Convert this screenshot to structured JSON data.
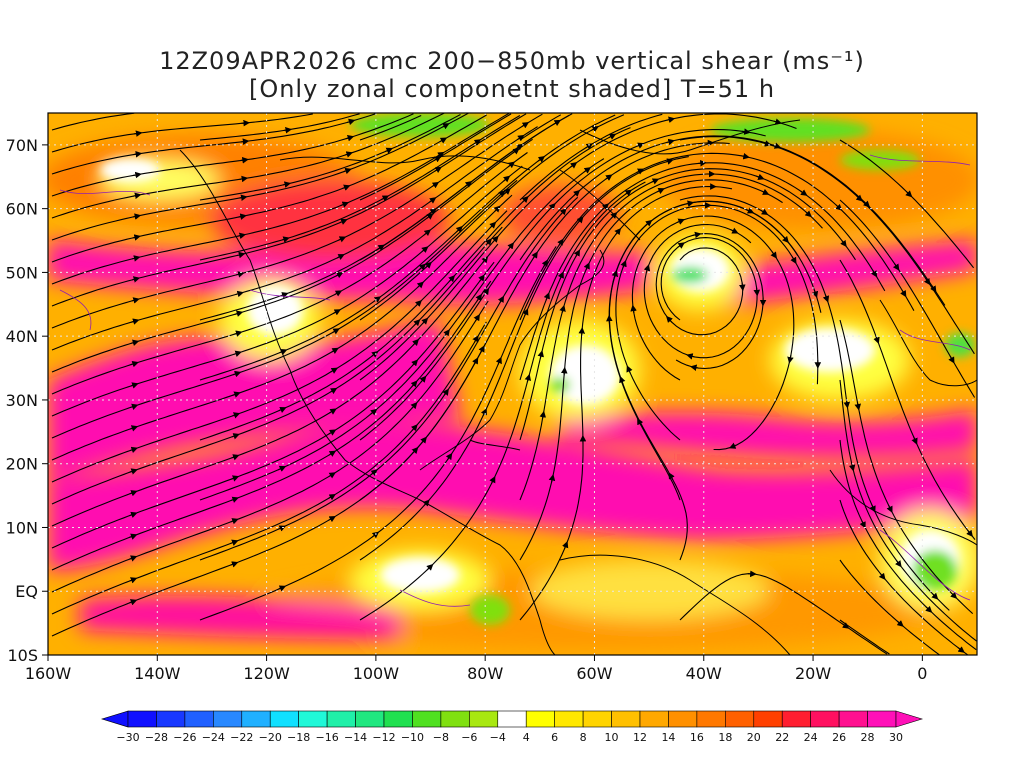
{
  "title": {
    "line1": "12Z09APR2026 cmc 200−850mb vertical shear (ms⁻¹)",
    "line2": "[Only zonal componetnt shaded] T=51 h"
  },
  "axes": {
    "lat_labels": [
      "70N",
      "60N",
      "50N",
      "40N",
      "30N",
      "20N",
      "10N",
      "EQ",
      "10S"
    ],
    "lat_values": [
      70,
      60,
      50,
      40,
      30,
      20,
      10,
      0,
      -10
    ],
    "lon_labels": [
      "160W",
      "140W",
      "120W",
      "100W",
      "80W",
      "60W",
      "40W",
      "20W",
      "0"
    ],
    "lon_values": [
      -160,
      -140,
      -120,
      -100,
      -80,
      -60,
      -40,
      -20,
      0
    ],
    "lon_range": [
      -160,
      10
    ],
    "lat_range": [
      -10,
      75
    ],
    "grid": "dotted"
  },
  "colorbar": {
    "labels": [
      "−30",
      "−28",
      "−26",
      "−24",
      "−22",
      "−20",
      "−18",
      "−16",
      "−14",
      "−12",
      "−10",
      "−8",
      "−6",
      "−4",
      "4",
      "6",
      "8",
      "10",
      "12",
      "14",
      "16",
      "18",
      "20",
      "22",
      "24",
      "26",
      "28",
      "30"
    ],
    "colors": [
      "#1010ff",
      "#1838ff",
      "#2060ff",
      "#2888ff",
      "#20b0ff",
      "#10e0ff",
      "#20f8d8",
      "#20f0a8",
      "#20e880",
      "#20e050",
      "#50e020",
      "#80e010",
      "#a8e810",
      "#ffffff",
      "#ffff00",
      "#ffe800",
      "#ffd400",
      "#ffc000",
      "#ffa800",
      "#ff9000",
      "#ff7800",
      "#ff6000",
      "#ff4000",
      "#ff1e30",
      "#ff1060",
      "#ff1090",
      "#ff10b8"
    ]
  },
  "chart_data": {
    "type": "heatmap",
    "field": "200-850mb vertical shear, zonal component shaded",
    "units": "ms⁻¹",
    "model": "cmc",
    "init_time": "12Z09APR2026",
    "forecast_hour": 51,
    "shade_range": [
      -30,
      30
    ]
  }
}
